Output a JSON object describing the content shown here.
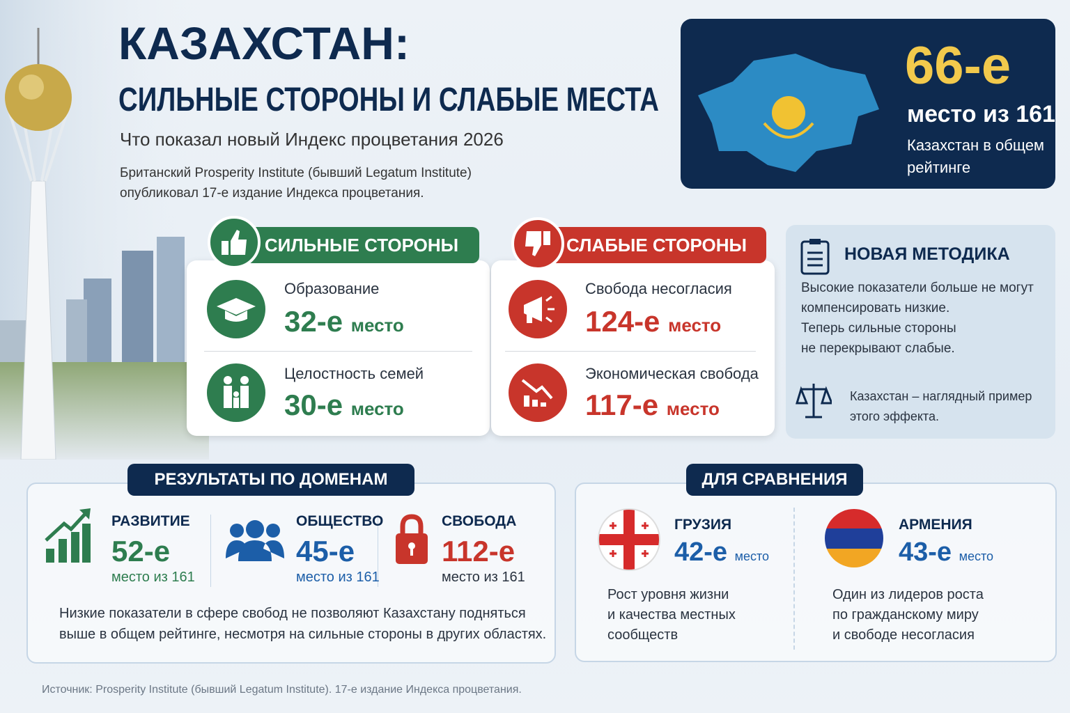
{
  "header": {
    "title": "КАЗАХСТАН:",
    "subtitle": "СИЛЬНЫЕ СТОРОНЫ И СЛАБЫЕ МЕСТА",
    "lead": "Что показал новый Индекс процветания 2026",
    "intro": [
      "Британский Prosperity Institute (бывший Legatum Institute)",
      "опубликовал 17-е издание Индекса процветания."
    ]
  },
  "overall": {
    "rank": "66-е",
    "of": "место из 161",
    "caption": [
      "Казахстан в общем",
      "рейтинге"
    ]
  },
  "strengths": {
    "title": "СИЛЬНЫЕ СТОРОНЫ",
    "items": [
      {
        "label": "Образование",
        "rank": "32-е",
        "unit": "место"
      },
      {
        "label": "Целостность семей",
        "rank": "30-е",
        "unit": "место"
      }
    ]
  },
  "weaknesses": {
    "title": "СЛАБЫЕ СТОРОНЫ",
    "items": [
      {
        "label": "Свобода несогласия",
        "rank": "124-е",
        "unit": "место"
      },
      {
        "label": "Экономическая свобода",
        "rank": "117-е",
        "unit": "место"
      }
    ]
  },
  "method": {
    "title": "НОВАЯ МЕТОДИКА",
    "lines": [
      "Высокие показатели больше не могут",
      "компенсировать низкие.",
      "Теперь сильные стороны",
      "не перекрывают слабые."
    ],
    "note": [
      "Казахстан – наглядный пример",
      "этого эффекта."
    ]
  },
  "domains": {
    "title": "РЕЗУЛЬТАТЫ ПО ДОМЕНАМ",
    "items": [
      {
        "label": "РАЗВИТИЕ",
        "rank": "52-е",
        "of": "место из 161"
      },
      {
        "label": "ОБЩЕСТВО",
        "rank": "45-е",
        "of": "место из 161"
      },
      {
        "label": "СВОБОДА",
        "rank": "112-е",
        "of": "место из 161"
      }
    ],
    "note": [
      "Низкие показатели в сфере свобод не позволяют Казахстану подняться",
      "выше в общем рейтинге, несмотря на сильные стороны в других областях."
    ]
  },
  "comparison": {
    "title": "ДЛЯ СРАВНЕНИЯ",
    "items": [
      {
        "country": "ГРУЗИЯ",
        "rank": "42-е",
        "unit": "место",
        "text": [
          "Рост уровня жизни",
          "и качества местных",
          "сообществ"
        ]
      },
      {
        "country": "АРМЕНИЯ",
        "rank": "43-е",
        "unit": "место",
        "text": [
          "Один из лидеров роста",
          "по гражданскому миру",
          "и свободе несогласия"
        ]
      }
    ]
  },
  "source": "Источник: Prosperity Institute (бывший Legatum Institute). 17-е издание Индекса процветания."
}
